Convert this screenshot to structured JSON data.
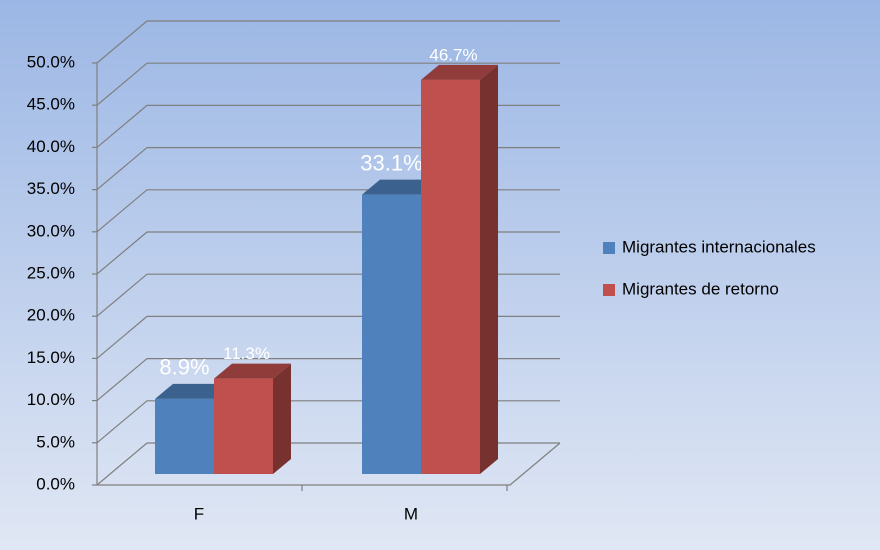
{
  "chart_data": {
    "type": "bar3d",
    "categories": [
      "F",
      "M"
    ],
    "series": [
      {
        "name": "Migrantes internacionales",
        "color": "#4f81bd",
        "values": [
          8.9,
          33.1
        ],
        "value_labels": [
          "8.9%",
          "33.1%"
        ]
      },
      {
        "name": "Migrantes de retorno",
        "color": "#c0504d",
        "values": [
          11.3,
          46.7
        ],
        "value_labels": [
          "11.3%",
          "46.7%"
        ]
      }
    ],
    "ylim": [
      0,
      50
    ],
    "yticks": [
      {
        "value": 0,
        "label": "0.0%"
      },
      {
        "value": 5,
        "label": "5.0%"
      },
      {
        "value": 10,
        "label": "10.0%"
      },
      {
        "value": 15,
        "label": "15.0%"
      },
      {
        "value": 20,
        "label": "20.0%"
      },
      {
        "value": 25,
        "label": "25.0%"
      },
      {
        "value": 30,
        "label": "30.0%"
      },
      {
        "value": 35,
        "label": "35.0%"
      },
      {
        "value": 40,
        "label": "40.0%"
      },
      {
        "value": 45,
        "label": "45.0%"
      },
      {
        "value": 50,
        "label": "50.0%"
      }
    ],
    "grid": true,
    "legend": "right"
  }
}
